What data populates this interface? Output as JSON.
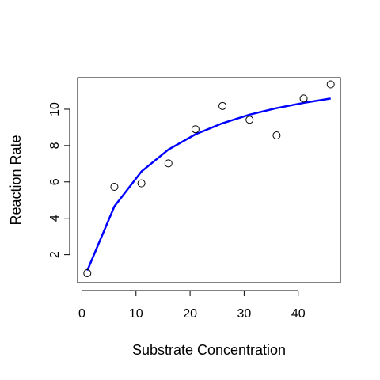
{
  "chart_data": {
    "type": "scatter",
    "title": "",
    "xlabel": "Substrate Concentration",
    "ylabel": "Reaction Rate",
    "xlim": [
      -0.8,
      47.8
    ],
    "ylim": [
      0.46,
      11.74
    ],
    "x_ticks": [
      0,
      10,
      20,
      30,
      40
    ],
    "y_ticks": [
      2,
      4,
      6,
      8,
      10
    ],
    "grid": false,
    "legend": "none",
    "series": [
      {
        "kind": "points",
        "marker": "open-circle",
        "color": "#000000",
        "x": [
          1,
          6,
          11,
          16,
          21,
          26,
          31,
          36,
          41,
          46
        ],
        "y": [
          0.98,
          5.73,
          5.92,
          7.02,
          8.9,
          10.18,
          9.42,
          8.56,
          10.59,
          11.37
        ]
      },
      {
        "kind": "line",
        "color": "#0000ff",
        "x": [
          1,
          6,
          11,
          16,
          21,
          26,
          31,
          36,
          41,
          46
        ],
        "y": [
          1.13,
          4.65,
          6.57,
          7.78,
          8.62,
          9.23,
          9.7,
          10.06,
          10.35,
          10.59
        ]
      }
    ]
  }
}
